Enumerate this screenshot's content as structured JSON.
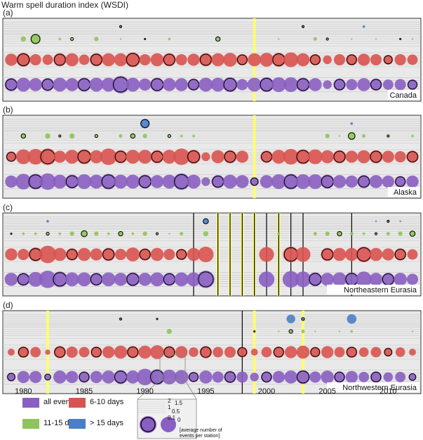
{
  "title": "Warm spell duration index (WSDI)",
  "colors": {
    "all_events": "#8a5fc1",
    "d6_10": "#d9534f",
    "d11_15": "#8fc45a",
    "gt15": "#4a7fc8",
    "panel_bg": "#e9e9e9",
    "highlight": "#ffff66"
  },
  "chart_data": {
    "type": "scatter",
    "x_ticks": [
      1980,
      1985,
      1990,
      1995,
      2000,
      2005,
      2010
    ],
    "x_range": [
      1979,
      2012
    ],
    "years": [
      1979,
      1980,
      1981,
      1982,
      1983,
      1984,
      1985,
      1986,
      1987,
      1988,
      1989,
      1990,
      1991,
      1992,
      1993,
      1994,
      1995,
      1996,
      1997,
      1998,
      1999,
      2000,
      2001,
      2002,
      2003,
      2004,
      2005,
      2006,
      2007,
      2008,
      2009,
      2010,
      2011,
      2012
    ],
    "rows": [
      "> 15 days",
      "11-15 days",
      "6-10 days",
      "all events"
    ],
    "panels": [
      {
        "label": "(a)",
        "region": "Canada",
        "highlight_years": [
          1999
        ],
        "black_lines": [],
        "gt15": [
          0,
          0,
          0,
          0,
          0,
          0,
          0,
          0,
          0,
          0.3,
          0,
          0,
          0,
          0,
          0,
          0,
          0,
          0,
          0,
          0,
          0,
          0,
          0,
          0,
          0.3,
          0,
          0,
          0,
          0,
          0.3,
          0,
          0,
          0,
          0
        ],
        "d11_15": [
          0,
          0.6,
          1.2,
          0,
          0.3,
          0.4,
          0,
          0.5,
          0,
          0.2,
          0,
          0.2,
          0,
          0.3,
          0,
          0,
          0,
          0.6,
          0,
          0,
          0,
          0,
          0.2,
          0,
          0,
          0.4,
          0.3,
          0,
          0.2,
          0,
          0.2,
          0,
          0.2,
          0.2
        ],
        "d6_10": [
          1.4,
          1.6,
          1.3,
          1.2,
          1.5,
          1.5,
          1.2,
          1.5,
          1.5,
          1.5,
          1.7,
          1.3,
          1.5,
          1.5,
          1.3,
          1.4,
          1.5,
          1.5,
          1.6,
          1.3,
          1.5,
          1.6,
          1.6,
          1.7,
          1.5,
          1.3,
          1.0,
          1.3,
          1.3,
          1.4,
          1.3,
          1.1,
          1.3,
          1.2
        ],
        "all_events": [
          1.5,
          1.6,
          1.5,
          1.5,
          1.6,
          1.5,
          1.6,
          1.6,
          1.6,
          2.0,
          1.6,
          1.4,
          1.6,
          1.5,
          1.5,
          1.4,
          1.6,
          1.6,
          1.7,
          1.3,
          1.6,
          1.7,
          1.7,
          1.7,
          1.6,
          1.5,
          1.0,
          1.4,
          1.3,
          1.5,
          1.4,
          1.2,
          1.3,
          1.2
        ]
      },
      {
        "label": "(b)",
        "region": "Alaska",
        "highlight_years": [
          1999
        ],
        "black_lines": [],
        "gt15": [
          0,
          0,
          0,
          0,
          0,
          0,
          0,
          0,
          0,
          0,
          0,
          1.1,
          0,
          0,
          0,
          0,
          0,
          0,
          0,
          0,
          0,
          0,
          0,
          0,
          0,
          0,
          0,
          0,
          0.3,
          0,
          0,
          0,
          0,
          0
        ],
        "d11_15": [
          0,
          0.6,
          0,
          0.6,
          0.3,
          0.6,
          0,
          0.4,
          0,
          0.4,
          0.6,
          0.5,
          0,
          0.4,
          0.3,
          0.3,
          0,
          0,
          0,
          0,
          0,
          0,
          0,
          0,
          0,
          0,
          0.5,
          0.2,
          0.9,
          0.4,
          0,
          0.3,
          0,
          0.3
        ],
        "d6_10": [
          1.2,
          1.7,
          1.8,
          1.9,
          1.4,
          1.6,
          1.7,
          1.5,
          1.9,
          1.5,
          1.6,
          1.6,
          1.5,
          1.6,
          1.9,
          1.6,
          1.0,
          1.5,
          1.5,
          1.4,
          0,
          1.4,
          1.6,
          1.8,
          1.7,
          1.7,
          1.5,
          1.5,
          1.4,
          1.5,
          1.5,
          1.4,
          1.3,
          1.4
        ],
        "all_events": [
          1.4,
          1.8,
          1.8,
          1.9,
          1.6,
          1.6,
          1.7,
          1.6,
          1.8,
          1.6,
          1.6,
          1.6,
          1.5,
          1.6,
          1.9,
          1.6,
          1.0,
          1.5,
          1.6,
          1.5,
          1.0,
          1.5,
          1.7,
          1.8,
          1.7,
          1.7,
          1.6,
          1.5,
          1.4,
          1.5,
          1.5,
          1.4,
          1.3,
          1.4
        ]
      },
      {
        "label": "(c)",
        "region": "Northeastern Eurasia",
        "highlight_years": [
          1996,
          1997,
          1998,
          1999,
          2001
        ],
        "black_lines": [
          1994,
          1996,
          1997,
          1998,
          1999,
          2000,
          2001,
          2002,
          2003,
          2007
        ],
        "gt15": [
          0,
          0,
          0,
          0.3,
          0,
          0,
          0,
          0,
          0,
          0,
          0,
          0,
          0,
          0,
          0,
          0,
          0.7,
          0,
          0,
          0,
          0,
          0,
          0,
          0,
          0,
          0,
          0,
          0,
          0,
          0,
          0.2,
          0.3,
          0.2,
          0
        ],
        "d11_15": [
          0.2,
          0.3,
          0.3,
          0.4,
          0.3,
          0.5,
          0.8,
          0.5,
          0.3,
          0.6,
          0.3,
          0.5,
          0.3,
          0.2,
          0.4,
          0,
          0.6,
          0,
          0,
          0,
          0,
          0,
          0.3,
          0,
          0,
          0.4,
          0.5,
          0.6,
          0.4,
          0.3,
          0.3,
          0.4,
          0.5,
          0.7
        ],
        "d6_10": [
          1.4,
          1.3,
          1.6,
          2.0,
          1.5,
          1.4,
          1.5,
          1.4,
          1.5,
          1.3,
          1.6,
          1.4,
          1.5,
          1.3,
          1.3,
          1.5,
          1.8,
          0,
          0,
          0,
          0,
          1.7,
          0,
          1.8,
          1.7,
          0,
          1.5,
          1.5,
          1.5,
          1.8,
          1.5,
          1.4,
          1.4,
          1.2
        ],
        "all_events": [
          1.5,
          1.5,
          1.7,
          2.0,
          1.8,
          1.6,
          1.6,
          1.5,
          1.6,
          1.5,
          1.6,
          1.5,
          1.6,
          1.5,
          1.6,
          1.6,
          2.0,
          0,
          0,
          0,
          0,
          1.8,
          0,
          1.9,
          1.8,
          1.6,
          1.5,
          1.6,
          1.6,
          1.8,
          1.5,
          1.5,
          1.5,
          1.3
        ]
      },
      {
        "label": "(d)",
        "region": "Northwestern Eurasia",
        "highlight_years": [
          1982,
          1999,
          2003
        ],
        "black_lines": [
          1998
        ],
        "gt15": [
          0,
          0,
          0,
          0,
          0,
          0,
          0,
          0,
          0,
          0.3,
          0,
          0,
          0.2,
          0,
          0,
          0,
          0,
          0,
          0,
          0,
          0,
          0,
          0,
          1.0,
          0.4,
          0,
          0,
          0,
          1.1,
          0,
          0,
          0,
          0,
          0
        ],
        "d11_15": [
          0,
          0,
          0,
          0,
          0,
          0,
          0,
          0,
          0,
          0,
          0,
          0,
          0,
          0.6,
          0,
          0,
          0,
          0,
          0,
          0,
          0.2,
          0,
          0.2,
          0.5,
          0.4,
          0.2,
          0,
          0.2,
          0.3,
          0,
          0,
          0,
          0,
          0.2
        ],
        "d6_10": [
          0.8,
          1.3,
          1.2,
          0.6,
          1.4,
          1.3,
          1.2,
          1.3,
          1.4,
          1.5,
          1.4,
          1.5,
          1.6,
          1.4,
          1.4,
          1.1,
          1.4,
          1.2,
          1.3,
          1.2,
          0.8,
          1.2,
          1.3,
          1.4,
          1.5,
          1.2,
          1.4,
          1.2,
          1.3,
          1.1,
          1.2,
          1.0,
          1.1,
          0.8
        ],
        "all_events": [
          1.0,
          1.4,
          1.4,
          0.8,
          1.5,
          1.4,
          1.3,
          1.4,
          1.5,
          1.6,
          1.5,
          1.9,
          1.8,
          1.7,
          1.6,
          1.2,
          1.5,
          1.3,
          1.4,
          1.3,
          1.0,
          1.3,
          1.4,
          1.5,
          1.6,
          1.3,
          1.5,
          1.3,
          1.4,
          1.2,
          1.3,
          1.1,
          1.2,
          0.9
        ]
      }
    ]
  },
  "legend": {
    "items": [
      {
        "label": "all events",
        "color": "#8a5fc1"
      },
      {
        "label": "6-10 days",
        "color": "#d9534f"
      },
      {
        "label": "11-15 days",
        "color": "#8fc45a"
      },
      {
        "label": "> 15 days",
        "color": "#4a7fc8"
      }
    ],
    "scale_values": [
      "2",
      "1.5",
      "1",
      "0.5",
      "0.1",
      "0"
    ],
    "scale_caption": [
      "[average number of",
      "events per station]"
    ]
  }
}
